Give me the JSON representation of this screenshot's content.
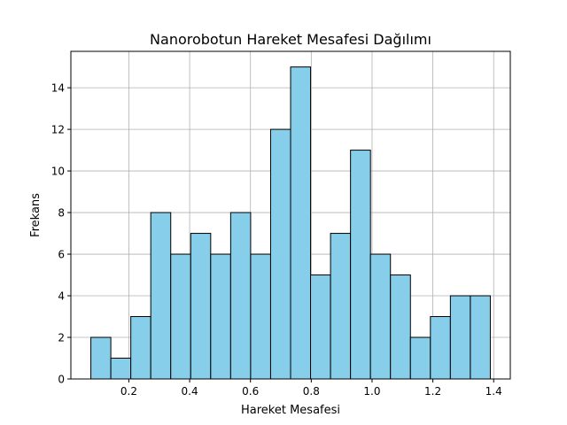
{
  "chart_data": {
    "type": "bar",
    "title": "Nanorobotun Hareket Mesafesi Dağılımı",
    "xlabel": "Hareket Mesafesi",
    "ylabel": "Frekans",
    "bin_edges": [
      0.075,
      0.1407,
      0.2064,
      0.2721,
      0.3378,
      0.4035,
      0.4692,
      0.5349,
      0.6006,
      0.6663,
      0.732,
      0.7977,
      0.8634,
      0.9291,
      0.9948,
      1.0605,
      1.1262,
      1.1919,
      1.2576,
      1.3233,
      1.389
    ],
    "values": [
      2,
      1,
      3,
      8,
      6,
      7,
      6,
      8,
      6,
      12,
      15,
      5,
      7,
      11,
      6,
      5,
      2,
      3,
      4,
      4
    ],
    "xlim": [
      0.0093,
      1.4547
    ],
    "ylim": [
      0,
      15.75
    ],
    "xticks": [
      0.2,
      0.4,
      0.6,
      0.8,
      1.0,
      1.2,
      1.4
    ],
    "xtick_labels": [
      "0.2",
      "0.4",
      "0.6",
      "0.8",
      "1.0",
      "1.2",
      "1.4"
    ],
    "yticks": [
      0,
      2,
      4,
      6,
      8,
      10,
      12,
      14
    ],
    "ytick_labels": [
      "0",
      "2",
      "4",
      "6",
      "8",
      "10",
      "12",
      "14"
    ],
    "grid": true,
    "bar_color": "#87ceeb",
    "edge_color": "#000000",
    "grid_color": "#b0b0b0"
  }
}
